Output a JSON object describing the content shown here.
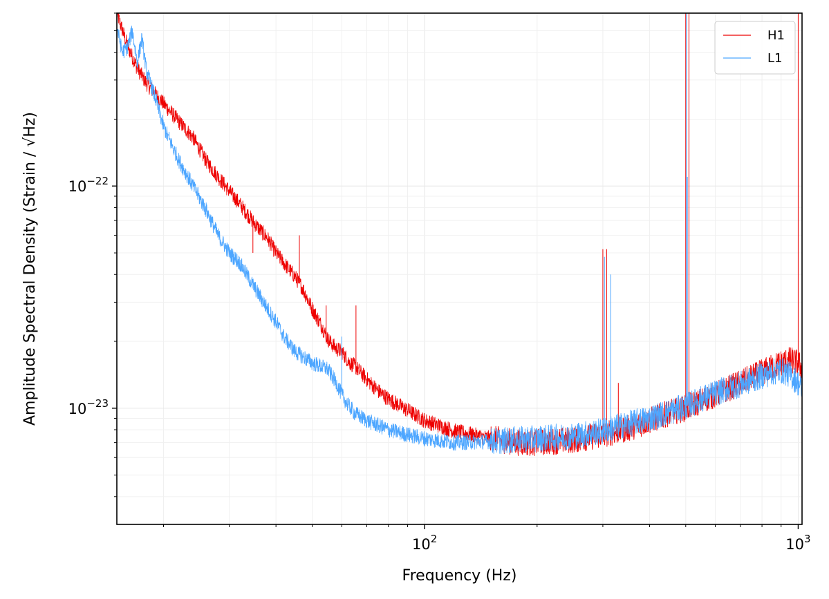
{
  "chart_data": {
    "type": "line",
    "title": "",
    "xlabel": "Frequency (Hz)",
    "ylabel": "Amplitude Spectral Density (Strain / √Hz)",
    "xscale": "log",
    "yscale": "log",
    "xlim": [
      15,
      1024
    ],
    "ylim": [
      3e-24,
      6e-22
    ],
    "x_ticks": [
      {
        "value": 100,
        "label_base": "10",
        "label_exp": "2"
      },
      {
        "value": 1000,
        "label_base": "10",
        "label_exp": "3"
      }
    ],
    "y_ticks": [
      {
        "value": 1e-23,
        "label_base": "10",
        "label_exp": "−23"
      },
      {
        "value": 1e-22,
        "label_base": "10",
        "label_exp": "−22"
      }
    ],
    "grid": true,
    "legend_position": "top-right",
    "series": [
      {
        "name": "H1",
        "color": "#ee0000",
        "x": [
          15,
          16,
          17,
          18,
          19,
          20,
          22,
          24,
          26,
          28,
          30,
          32,
          35,
          38,
          40,
          42,
          45,
          47,
          50,
          53,
          55,
          58,
          60,
          63,
          65,
          70,
          75,
          80,
          90,
          100,
          120,
          150,
          180,
          200,
          250,
          300,
          350,
          400,
          450,
          500,
          550,
          600,
          700,
          800,
          900,
          950,
          1000,
          1024
        ],
        "values": [
          6e-22,
          4.3e-22,
          3.4e-22,
          2.9e-22,
          2.6e-22,
          2.35e-22,
          1.95e-22,
          1.65e-22,
          1.3e-22,
          1.1e-22,
          9.5e-23,
          8.3e-23,
          6.8e-23,
          5.8e-23,
          5e-23,
          4.5e-23,
          3.9e-23,
          3.5e-23,
          2.8e-23,
          2.35e-23,
          2.05e-23,
          1.85e-23,
          1.8e-23,
          1.6e-23,
          1.55e-23,
          1.35e-23,
          1.2e-23,
          1.1e-23,
          9.8e-24,
          8.8e-24,
          7.9e-24,
          7.3e-24,
          7e-24,
          7e-24,
          7.2e-24,
          7.6e-24,
          8.1e-24,
          8.8e-24,
          9.5e-24,
          1e-23,
          1.08e-23,
          1.15e-23,
          1.3e-23,
          1.45e-23,
          1.6e-23,
          1.65e-23,
          1.6e-23,
          1.5e-23
        ],
        "peaks": [
          {
            "x": 34.7,
            "y": 5e-23
          },
          {
            "x": 46.2,
            "y": 6e-23
          },
          {
            "x": 54.5,
            "y": 2.9e-23
          },
          {
            "x": 65.5,
            "y": 2.9e-23
          },
          {
            "x": 300,
            "y": 5.2e-23
          },
          {
            "x": 307,
            "y": 5.2e-23
          },
          {
            "x": 330,
            "y": 1.3e-23
          },
          {
            "x": 500,
            "y": 6e-22
          },
          {
            "x": 510,
            "y": 6e-22
          },
          {
            "x": 1000,
            "y": 6e-22
          }
        ]
      },
      {
        "name": "L1",
        "color": "#4da6ff",
        "x": [
          15,
          15.5,
          16,
          16.5,
          17,
          17.5,
          18,
          19,
          20,
          22,
          24,
          26,
          28,
          30,
          32,
          35,
          38,
          40,
          42,
          45,
          50,
          55,
          58,
          60,
          62,
          65,
          70,
          80,
          90,
          100,
          120,
          150,
          200,
          250,
          300,
          350,
          400,
          450,
          500,
          550,
          600,
          700,
          800,
          850,
          900,
          950,
          1000,
          1024
        ],
        "values": [
          5.2e-22,
          4e-22,
          4.2e-22,
          5e-22,
          3.6e-22,
          4.6e-22,
          3.3e-22,
          2.5e-22,
          1.85e-22,
          1.3e-22,
          1e-22,
          7.8e-23,
          6e-23,
          5e-23,
          4.5e-23,
          3.5e-23,
          2.8e-23,
          2.45e-23,
          2.1e-23,
          1.8e-23,
          1.6e-23,
          1.5e-23,
          1.3e-23,
          1.15e-23,
          1.05e-23,
          9.5e-24,
          8.8e-24,
          8e-24,
          7.6e-24,
          7.3e-24,
          7e-24,
          7.1e-24,
          7.3e-24,
          7.5e-24,
          7.9e-24,
          8.5e-24,
          9e-24,
          9.6e-24,
          1.02e-23,
          1.1e-23,
          1.17e-23,
          1.28e-23,
          1.4e-23,
          1.45e-23,
          1.48e-23,
          1.42e-23,
          1.3e-23,
          1.2e-23
        ],
        "peaks": [
          {
            "x": 60,
            "y": 2.1e-23
          },
          {
            "x": 303,
            "y": 4.8e-23
          },
          {
            "x": 315,
            "y": 4e-23
          },
          {
            "x": 502,
            "y": 6e-22
          },
          {
            "x": 505,
            "y": 1.1e-22
          }
        ]
      }
    ]
  }
}
